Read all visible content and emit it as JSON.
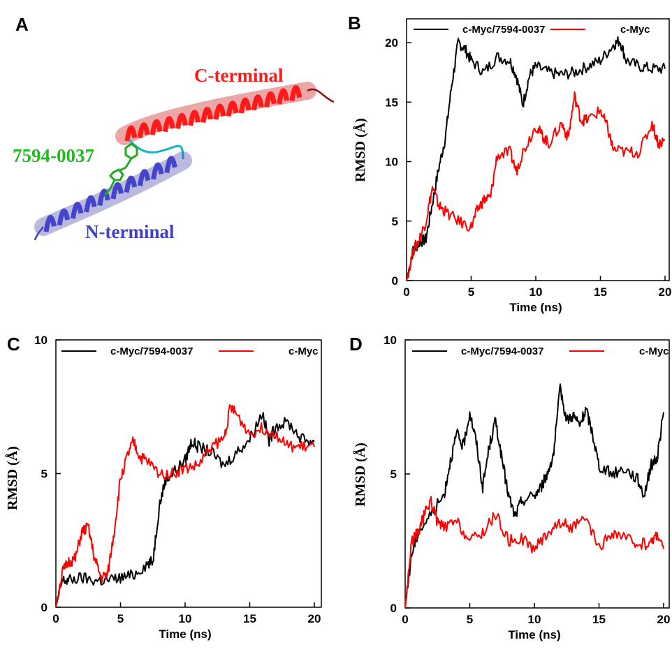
{
  "panels": {
    "A": "A",
    "B": "B",
    "C": "C",
    "D": "D"
  },
  "structure": {
    "c_terminal_label": "C-terminal",
    "n_terminal_label": "N-terminal",
    "ligand_label": "7594-0037",
    "colors": {
      "c_terminal": "#ff1a1a",
      "n_terminal": "#4444cc",
      "ligand": "#22bb22",
      "loop": "#19b3c8"
    }
  },
  "chart_data": [
    {
      "panel": "B",
      "type": "line",
      "xlabel": "Time (ns)",
      "ylabel": "RMSD (Å)",
      "xlim": [
        0,
        20
      ],
      "ylim": [
        0,
        22
      ],
      "xticks": [
        0,
        5,
        10,
        15,
        20
      ],
      "yticks": [
        0,
        5,
        10,
        15,
        20
      ],
      "legend_position": "top",
      "series": [
        {
          "name": "c-Myc/7594-0037",
          "color": "#000000",
          "x": [
            0,
            0.5,
            1,
            1.5,
            2,
            2.5,
            3,
            3.5,
            4,
            4.5,
            5,
            6,
            7,
            8,
            8.5,
            9,
            9.5,
            10,
            11,
            12,
            13,
            14,
            15,
            16,
            16.5,
            17,
            18,
            19,
            20
          ],
          "y": [
            0,
            2.5,
            3.2,
            3.5,
            6.5,
            9.5,
            12,
            16.5,
            20,
            19.5,
            18.5,
            17.5,
            18.8,
            18.5,
            17.2,
            14.8,
            17.2,
            18,
            17.5,
            17.3,
            17.5,
            18,
            18.5,
            19.8,
            20.2,
            18.5,
            18,
            17.8,
            17.8
          ]
        },
        {
          "name": "c-Myc",
          "color": "#ff0000",
          "x": [
            0,
            0.5,
            1,
            1.5,
            2,
            2.5,
            3,
            4,
            5,
            5.5,
            6,
            6.5,
            7,
            8,
            8.5,
            9,
            10,
            10.5,
            11,
            12,
            12.5,
            13,
            13.5,
            14,
            15,
            15.5,
            16,
            17,
            18,
            19,
            19.5,
            20
          ],
          "y": [
            0,
            2.5,
            3.5,
            5,
            7.8,
            6.3,
            5.8,
            5,
            4.5,
            6,
            6.8,
            7,
            10.5,
            10.8,
            9.2,
            10.8,
            13,
            12.2,
            11.5,
            13.2,
            12,
            15.5,
            13.5,
            13.5,
            14.3,
            13,
            11,
            10.8,
            10.8,
            13.2,
            11.5,
            11.8
          ]
        }
      ]
    },
    {
      "panel": "C",
      "type": "line",
      "xlabel": "Time (ns)",
      "ylabel": "RMSD (Å)",
      "xlim": [
        0,
        20
      ],
      "ylim": [
        0,
        10
      ],
      "xticks": [
        0,
        5,
        10,
        15,
        20
      ],
      "yticks": [
        0,
        5,
        10
      ],
      "legend_position": "top",
      "series": [
        {
          "name": "c-Myc/7594-0037",
          "color": "#000000",
          "x": [
            0,
            0.5,
            1,
            2,
            3,
            4,
            5,
            6,
            7,
            7.5,
            8,
            8.5,
            9,
            10,
            10.5,
            11,
            12,
            13,
            14,
            15,
            16,
            16.5,
            17,
            18,
            19,
            20
          ],
          "y": [
            0,
            1,
            1,
            1.1,
            1,
            1,
            1.1,
            1.2,
            1.6,
            1.7,
            3.8,
            4.8,
            5,
            5.5,
            6.2,
            6,
            5.8,
            5.3,
            5.8,
            6.3,
            7.3,
            6.2,
            6.8,
            6.9,
            6.3,
            6.2
          ]
        },
        {
          "name": "c-Myc",
          "color": "#ff0000",
          "x": [
            0,
            0.5,
            1,
            1.5,
            2,
            2.5,
            3,
            3.5,
            4,
            4.5,
            5,
            5.5,
            6,
            6.5,
            7,
            8,
            9,
            10,
            11,
            12,
            13,
            13.5,
            14,
            15,
            16,
            17,
            18,
            19,
            20
          ],
          "y": [
            0,
            1.3,
            1.7,
            1.8,
            2.8,
            3,
            1.8,
            1.1,
            1.2,
            2.8,
            4.8,
            5.6,
            6.2,
            5.6,
            5.5,
            5,
            5,
            5.2,
            5.3,
            6,
            6.3,
            7.5,
            7.2,
            6.5,
            6.7,
            6.5,
            6,
            6,
            6
          ]
        }
      ]
    },
    {
      "panel": "D",
      "type": "line",
      "xlabel": "Time (ns)",
      "ylabel": "RMSD (Å)",
      "xlim": [
        0,
        20
      ],
      "ylim": [
        0,
        10
      ],
      "xticks": [
        0,
        5,
        10,
        15,
        20
      ],
      "yticks": [
        0,
        5,
        10
      ],
      "legend_position": "top",
      "series": [
        {
          "name": "c-Myc/7594-0037",
          "color": "#000000",
          "x": [
            0,
            0.5,
            1,
            2,
            3,
            3.5,
            4,
            4.5,
            5,
            5.5,
            6,
            6.5,
            7,
            7.5,
            8,
            8.5,
            9,
            10,
            10.5,
            11,
            11.5,
            12,
            12.5,
            13,
            13.5,
            14,
            14.5,
            15,
            16,
            17,
            18,
            18.5,
            19,
            19.5,
            20
          ],
          "y": [
            0,
            2,
            2.8,
            3.5,
            4.2,
            5.5,
            6.5,
            6,
            7.3,
            6.2,
            4.5,
            6,
            7,
            5.5,
            4.2,
            3.4,
            4,
            4.2,
            4.5,
            5,
            5.8,
            8.2,
            7,
            7.2,
            6.8,
            7.4,
            6.5,
            5.3,
            5,
            5.2,
            4.8,
            4.2,
            5.3,
            5.6,
            7.3
          ]
        },
        {
          "name": "c-Myc",
          "color": "#ff0000",
          "x": [
            0,
            0.5,
            1,
            1.5,
            2,
            2.5,
            3,
            4,
            5,
            6,
            7,
            8,
            9,
            10,
            11,
            12,
            13,
            14,
            15,
            16,
            17,
            18,
            19,
            19.5,
            20
          ],
          "y": [
            0,
            2.5,
            2.8,
            3.5,
            4,
            3.2,
            3,
            3.2,
            2.5,
            2.8,
            3.5,
            2.5,
            2.6,
            2.2,
            2.8,
            3.2,
            3,
            3.3,
            2.2,
            2.8,
            2.6,
            2.4,
            2.4,
            2.8,
            2.2
          ]
        }
      ]
    }
  ]
}
